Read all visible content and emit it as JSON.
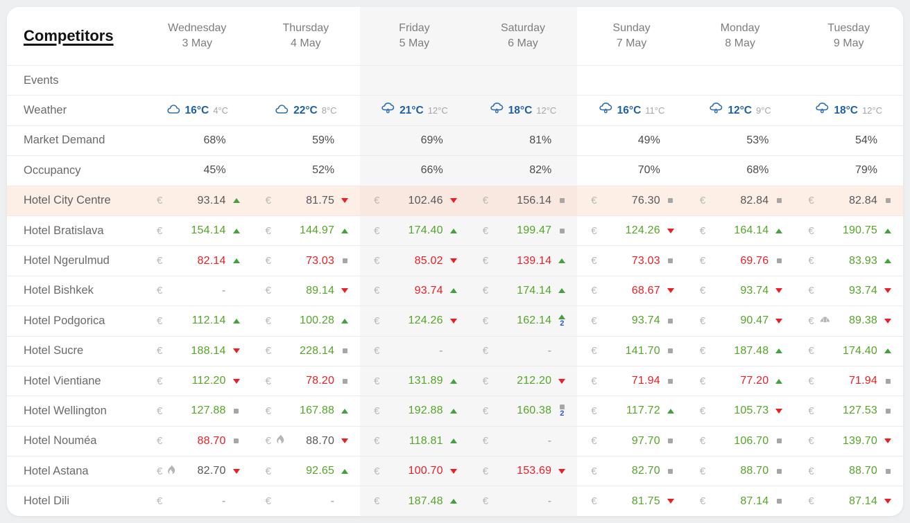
{
  "header": {
    "title": "Competitors",
    "days": [
      {
        "name": "Wednesday",
        "date": "3 May",
        "weekend": false
      },
      {
        "name": "Thursday",
        "date": "4 May",
        "weekend": false
      },
      {
        "name": "Friday",
        "date": "5 May",
        "weekend": true
      },
      {
        "name": "Saturday",
        "date": "6 May",
        "weekend": true
      },
      {
        "name": "Sunday",
        "date": "7 May",
        "weekend": false
      },
      {
        "name": "Monday",
        "date": "8 May",
        "weekend": false
      },
      {
        "name": "Tuesday",
        "date": "9 May",
        "weekend": false
      }
    ]
  },
  "currency_symbol": "€",
  "rows": {
    "events": {
      "label": "Events"
    },
    "weather": {
      "label": "Weather",
      "cells": [
        {
          "icon": "cloud-icon",
          "high": "16°C",
          "low": "4°C"
        },
        {
          "icon": "cloud-icon",
          "high": "22°C",
          "low": "8°C"
        },
        {
          "icon": "rain-icon",
          "high": "21°C",
          "low": "12°C"
        },
        {
          "icon": "rain-icon",
          "high": "18°C",
          "low": "12°C"
        },
        {
          "icon": "rain-icon",
          "high": "16°C",
          "low": "11°C"
        },
        {
          "icon": "rain-icon",
          "high": "12°C",
          "low": "9°C"
        },
        {
          "icon": "rain-icon",
          "high": "18°C",
          "low": "12°C"
        }
      ]
    },
    "market_demand": {
      "label": "Market Demand",
      "values": [
        "68%",
        "59%",
        "69%",
        "81%",
        "49%",
        "53%",
        "54%"
      ]
    },
    "occupancy": {
      "label": "Occupancy",
      "values": [
        "45%",
        "52%",
        "66%",
        "82%",
        "70%",
        "68%",
        "79%"
      ]
    }
  },
  "hotels": [
    {
      "name": "Hotel City Centre",
      "highlight": true,
      "cells": [
        {
          "value": "93.14",
          "color": "dark",
          "trend": "up"
        },
        {
          "value": "81.75",
          "color": "dark",
          "trend": "down"
        },
        {
          "value": "102.46",
          "color": "dark",
          "trend": "down"
        },
        {
          "value": "156.14",
          "color": "dark",
          "trend": "flat"
        },
        {
          "value": "76.30",
          "color": "dark",
          "trend": "flat"
        },
        {
          "value": "82.84",
          "color": "dark",
          "trend": "flat"
        },
        {
          "value": "82.84",
          "color": "dark",
          "trend": "flat"
        }
      ]
    },
    {
      "name": "Hotel Bratislava",
      "highlight": false,
      "cells": [
        {
          "value": "154.14",
          "color": "green",
          "trend": "up"
        },
        {
          "value": "144.97",
          "color": "green",
          "trend": "up"
        },
        {
          "value": "174.40",
          "color": "green",
          "trend": "up"
        },
        {
          "value": "199.47",
          "color": "green",
          "trend": "flat"
        },
        {
          "value": "124.26",
          "color": "green",
          "trend": "down"
        },
        {
          "value": "164.14",
          "color": "green",
          "trend": "up"
        },
        {
          "value": "190.75",
          "color": "green",
          "trend": "up"
        }
      ]
    },
    {
      "name": "Hotel Ngerulmud",
      "highlight": false,
      "cells": [
        {
          "value": "82.14",
          "color": "red",
          "trend": "up"
        },
        {
          "value": "73.03",
          "color": "red",
          "trend": "flat"
        },
        {
          "value": "85.02",
          "color": "red",
          "trend": "down"
        },
        {
          "value": "139.14",
          "color": "red",
          "trend": "up"
        },
        {
          "value": "73.03",
          "color": "red",
          "trend": "flat"
        },
        {
          "value": "69.76",
          "color": "red",
          "trend": "flat"
        },
        {
          "value": "83.93",
          "color": "green",
          "trend": "up"
        }
      ]
    },
    {
      "name": "Hotel Bishkek",
      "highlight": false,
      "cells": [
        {
          "value": "-",
          "color": "dash",
          "trend": "none"
        },
        {
          "value": "89.14",
          "color": "green",
          "trend": "down"
        },
        {
          "value": "93.74",
          "color": "red",
          "trend": "up"
        },
        {
          "value": "174.14",
          "color": "green",
          "trend": "up"
        },
        {
          "value": "68.67",
          "color": "red",
          "trend": "down"
        },
        {
          "value": "93.74",
          "color": "green",
          "trend": "down"
        },
        {
          "value": "93.74",
          "color": "green",
          "trend": "down"
        }
      ]
    },
    {
      "name": "Hotel Podgorica",
      "highlight": false,
      "cells": [
        {
          "value": "112.14",
          "color": "green",
          "trend": "up"
        },
        {
          "value": "100.28",
          "color": "green",
          "trend": "up"
        },
        {
          "value": "124.26",
          "color": "green",
          "trend": "down"
        },
        {
          "value": "162.14",
          "color": "green",
          "trend": "up",
          "badge": "2"
        },
        {
          "value": "93.74",
          "color": "green",
          "trend": "flat"
        },
        {
          "value": "90.47",
          "color": "green",
          "trend": "down"
        },
        {
          "value": "89.38",
          "color": "green",
          "trend": "down",
          "prefix": "croissant-icon"
        }
      ]
    },
    {
      "name": "Hotel Sucre",
      "highlight": false,
      "cells": [
        {
          "value": "188.14",
          "color": "green",
          "trend": "down"
        },
        {
          "value": "228.14",
          "color": "green",
          "trend": "flat"
        },
        {
          "value": "-",
          "color": "dash",
          "trend": "none"
        },
        {
          "value": "-",
          "color": "dash",
          "trend": "none"
        },
        {
          "value": "141.70",
          "color": "green",
          "trend": "flat"
        },
        {
          "value": "187.48",
          "color": "green",
          "trend": "up"
        },
        {
          "value": "174.40",
          "color": "green",
          "trend": "up"
        }
      ]
    },
    {
      "name": "Hotel Vientiane",
      "highlight": false,
      "cells": [
        {
          "value": "112.20",
          "color": "green",
          "trend": "down"
        },
        {
          "value": "78.20",
          "color": "red",
          "trend": "flat"
        },
        {
          "value": "131.89",
          "color": "green",
          "trend": "up"
        },
        {
          "value": "212.20",
          "color": "green",
          "trend": "down"
        },
        {
          "value": "71.94",
          "color": "red",
          "trend": "flat"
        },
        {
          "value": "77.20",
          "color": "red",
          "trend": "up"
        },
        {
          "value": "71.94",
          "color": "red",
          "trend": "flat"
        }
      ]
    },
    {
      "name": "Hotel Wellington",
      "highlight": false,
      "cells": [
        {
          "value": "127.88",
          "color": "green",
          "trend": "flat"
        },
        {
          "value": "167.88",
          "color": "green",
          "trend": "up"
        },
        {
          "value": "192.88",
          "color": "green",
          "trend": "up"
        },
        {
          "value": "160.38",
          "color": "green",
          "trend": "flat",
          "badge": "2"
        },
        {
          "value": "117.72",
          "color": "green",
          "trend": "up"
        },
        {
          "value": "105.73",
          "color": "green",
          "trend": "down"
        },
        {
          "value": "127.53",
          "color": "green",
          "trend": "flat"
        }
      ]
    },
    {
      "name": "Hotel Nouméa",
      "highlight": false,
      "cells": [
        {
          "value": "88.70",
          "color": "red",
          "trend": "flat"
        },
        {
          "value": "88.70",
          "color": "dark",
          "trend": "down",
          "prefix": "flame-icon"
        },
        {
          "value": "118.81",
          "color": "green",
          "trend": "up"
        },
        {
          "value": "-",
          "color": "dash",
          "trend": "none"
        },
        {
          "value": "97.70",
          "color": "green",
          "trend": "flat"
        },
        {
          "value": "106.70",
          "color": "green",
          "trend": "flat"
        },
        {
          "value": "139.70",
          "color": "green",
          "trend": "down"
        }
      ]
    },
    {
      "name": "Hotel Astana",
      "highlight": false,
      "cells": [
        {
          "value": "82.70",
          "color": "dark",
          "trend": "down",
          "prefix": "flame-icon"
        },
        {
          "value": "92.65",
          "color": "green",
          "trend": "up"
        },
        {
          "value": "100.70",
          "color": "red",
          "trend": "down"
        },
        {
          "value": "153.69",
          "color": "red",
          "trend": "down"
        },
        {
          "value": "82.70",
          "color": "green",
          "trend": "flat"
        },
        {
          "value": "88.70",
          "color": "green",
          "trend": "flat"
        },
        {
          "value": "88.70",
          "color": "green",
          "trend": "flat"
        }
      ]
    },
    {
      "name": "Hotel Dili",
      "highlight": false,
      "cells": [
        {
          "value": "-",
          "color": "dash",
          "trend": "none"
        },
        {
          "value": "-",
          "color": "dash",
          "trend": "none"
        },
        {
          "value": "187.48",
          "color": "green",
          "trend": "up"
        },
        {
          "value": "-",
          "color": "dash",
          "trend": "none"
        },
        {
          "value": "81.75",
          "color": "green",
          "trend": "down"
        },
        {
          "value": "87.14",
          "color": "green",
          "trend": "flat"
        },
        {
          "value": "87.14",
          "color": "green",
          "trend": "down"
        }
      ]
    }
  ],
  "colors": {
    "rate_up_green": "#53a626",
    "rate_down_red": "#ee1d23",
    "own_rate_dark": "#57575a",
    "weather_blue": "#1b5fa8",
    "highlight_row_bg": "#fdeee6",
    "weekend_column_bg": "#f6f6f7",
    "badge_blue": "#2f4fd8"
  }
}
